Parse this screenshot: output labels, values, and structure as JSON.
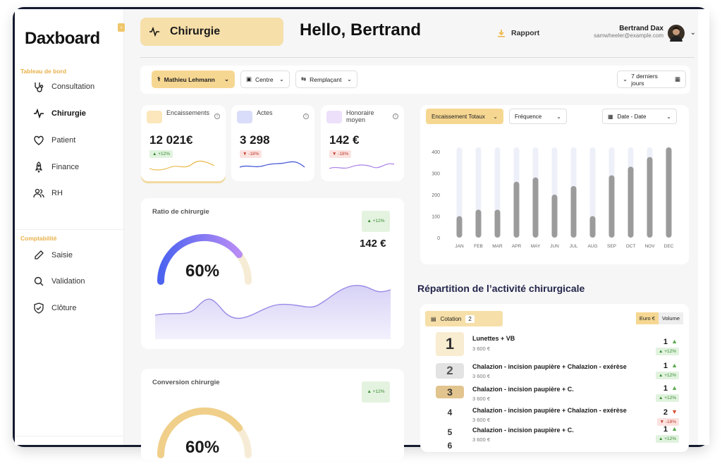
{
  "app": {
    "logo": "Daxboard",
    "page_title": "Chirurgie",
    "greeting": "Hello, Bertrand"
  },
  "header": {
    "report_label": "Rapport",
    "user_name": "Bertrand Dax",
    "user_email": "samwheeler@example.com"
  },
  "sidebar": {
    "section1": "Tableau de bord",
    "items1": [
      {
        "label": "Consultation",
        "icon": "stethoscope-icon"
      },
      {
        "label": "Chirurgie",
        "icon": "pulse-icon",
        "active": true
      },
      {
        "label": "Patient",
        "icon": "heart-icon"
      },
      {
        "label": "Finance",
        "icon": "rocket-icon"
      },
      {
        "label": "RH",
        "icon": "users-icon"
      }
    ],
    "section2": "Comptabilité",
    "items2": [
      {
        "label": "Saisie",
        "icon": "pencil-icon"
      },
      {
        "label": "Validation",
        "icon": "search-icon"
      },
      {
        "label": "Clôture",
        "icon": "shield-check-icon"
      }
    ]
  },
  "filters": {
    "doctor": "Mathieu Lehmann",
    "center": "Centre",
    "replacement": "Remplaçant",
    "period": "7 derniers jours"
  },
  "kpis": [
    {
      "label": "Encaissements",
      "value": "12 021€",
      "trend": "+12%",
      "direction": "up",
      "color": "#e8b84a"
    },
    {
      "label": "Actes",
      "value": "3 298",
      "trend": "-18%",
      "direction": "down",
      "color": "#4a5ad8"
    },
    {
      "label": "Honoraire moyen",
      "value": "142 €",
      "trend": "-18%",
      "direction": "down",
      "color": "#a67be6"
    }
  ],
  "ratio": {
    "title": "Ratio de chirurgie",
    "percent": "60%",
    "percent_value": 60,
    "trend": "+12%",
    "amount": "142 €"
  },
  "conversion": {
    "title": "Conversion chirurgie",
    "percent": "60%",
    "percent_value": 60,
    "trend": "+12%"
  },
  "chart_controls": {
    "metric": "Encaissement Totaux",
    "frequency": "Fréquence",
    "date": "Date - Date"
  },
  "chart_data": {
    "type": "bar",
    "categories": [
      "JAN",
      "FEB",
      "MAR",
      "APR",
      "MAY",
      "JUN",
      "JUL",
      "AUG",
      "SEP",
      "OCT",
      "NOV",
      "DEC"
    ],
    "values": [
      100,
      130,
      130,
      260,
      280,
      200,
      240,
      100,
      290,
      330,
      375,
      420
    ],
    "ylim": [
      0,
      420
    ],
    "yticks": [
      0,
      100,
      200,
      300,
      400
    ],
    "background_max": 420,
    "grid": false
  },
  "repartition": {
    "title": "Répartition de l’activité chirurgicale",
    "cotation_label": "Cotation",
    "cotation_count": "2",
    "toggle_euro": "Euro €",
    "toggle_volume": "Volume",
    "rows": [
      {
        "rank": "1",
        "name": "Lunettes + VB",
        "amount": "3 600 €",
        "count": "1",
        "trend": "+12%",
        "dir": "up"
      },
      {
        "rank": "2",
        "name": "Chalazion - incision paupière + Chalazion - exérèse",
        "amount": "3 600 €",
        "count": "1",
        "trend": "+12%",
        "dir": "up"
      },
      {
        "rank": "3",
        "name": "Chalazion - incision paupière + C.",
        "amount": "3 600 €",
        "count": "1",
        "trend": "+12%",
        "dir": "up"
      },
      {
        "rank": "4",
        "name": "Chalazion - incision paupière + Chalazion - exérèse",
        "amount": "3 600 €",
        "count": "2",
        "trend": "-18%",
        "dir": "down"
      },
      {
        "rank": "5",
        "name": "Chalazion - incision paupière + C.",
        "amount": "3 600 €",
        "count": "1",
        "trend": "+12%",
        "dir": "up"
      },
      {
        "rank": "6",
        "name": "",
        "amount": "",
        "count": "",
        "trend": "",
        "dir": ""
      }
    ]
  }
}
